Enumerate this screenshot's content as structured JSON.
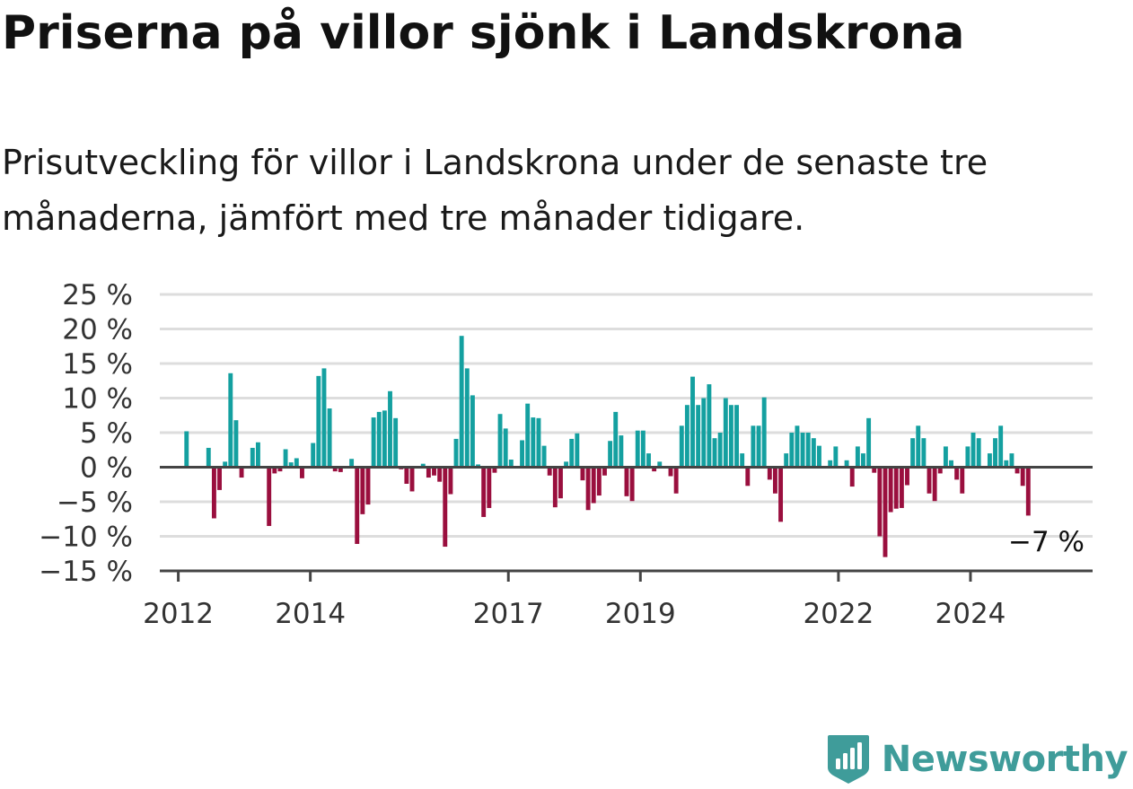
{
  "title": "Priserna på villor sjönk i Landskrona",
  "subtitle": "Prisutveckling för villor i Landskrona under de senaste tre månaderna, jämfört med tre månader tidigare.",
  "logo_text": "Newsworthy",
  "colors": {
    "positive": "#14a0a0",
    "negative": "#9a0f3e",
    "grid": "#dddddd",
    "axis": "#444444",
    "brand": "#3f9c9a"
  },
  "chart_data": {
    "type": "bar",
    "ylim": [
      -15,
      25
    ],
    "xlim": [
      2011.72,
      2025.85
    ],
    "y_ticks": [
      25,
      20,
      15,
      10,
      5,
      0,
      -5,
      -10,
      -15
    ],
    "y_tick_labels": [
      "25 %",
      "20 %",
      "15 %",
      "10 %",
      "5 %",
      "0 %",
      "−5 %",
      "−10 %",
      "−15 %"
    ],
    "x_ticks": [
      2012,
      2014,
      2017,
      2019,
      2022,
      2024
    ],
    "x_tick_labels": [
      "2012",
      "2014",
      "2017",
      "2019",
      "2022",
      "2024"
    ],
    "last_value_label": "−7 %",
    "start": [
      2012,
      2
    ],
    "values": [
      5.2,
      0,
      0,
      0,
      2.8,
      -7.4,
      -3.3,
      0.8,
      13.6,
      6.8,
      -1.5,
      0,
      2.8,
      3.6,
      0,
      -8.5,
      -0.9,
      -0.6,
      2.6,
      0.7,
      1.3,
      -1.6,
      0,
      3.5,
      13.2,
      14.3,
      8.5,
      -0.6,
      -0.7,
      0,
      1.2,
      -11.1,
      -6.8,
      -5.4,
      7.2,
      8.0,
      8.2,
      11.0,
      7.1,
      -0.3,
      -2.4,
      -3.5,
      0,
      0.5,
      -1.5,
      -1.2,
      -2.1,
      -11.5,
      -3.9,
      4.1,
      19.0,
      14.3,
      10.4,
      0.4,
      -7.2,
      -5.9,
      -0.8,
      7.7,
      5.6,
      1.1,
      0,
      3.9,
      9.2,
      7.2,
      7.1,
      3.1,
      -1.2,
      -5.8,
      -4.5,
      0.8,
      4.1,
      4.9,
      -1.9,
      -6.2,
      -5.2,
      -4.1,
      -1.2,
      3.8,
      8.0,
      4.6,
      -4.2,
      -4.9,
      5.3,
      5.3,
      2.0,
      -0.6,
      0.8,
      0,
      -1.3,
      -3.8,
      6.0,
      9.0,
      13.1,
      9.0,
      10.0,
      12.0,
      4.2,
      5.0,
      10.0,
      9.0,
      9.0,
      2.0,
      -2.7,
      6.0,
      6.0,
      10.1,
      -1.8,
      -3.8,
      -7.9,
      2.0,
      5.0,
      6.0,
      5.0,
      5.0,
      4.2,
      3.1,
      0,
      1.0,
      3.0,
      0,
      1.0,
      -2.8,
      3.0,
      2.0,
      7.1,
      -0.8,
      -10.0,
      -13.0,
      -6.5,
      -6.0,
      -5.9,
      -2.6,
      4.2,
      6.0,
      4.2,
      -3.8,
      -4.9,
      -0.9,
      3.0,
      1.0,
      -1.8,
      -3.8,
      3.0,
      5.0,
      4.2,
      0,
      2.0,
      4.2,
      6.0,
      1.0,
      2.0,
      -0.9,
      -2.7,
      -7.0
    ]
  }
}
